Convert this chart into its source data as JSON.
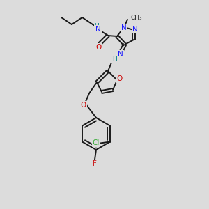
{
  "background_color": "#dcdcdc",
  "bond_color": "#1a1a1a",
  "atom_colors": {
    "N": "#1a1aff",
    "O": "#cc0000",
    "H": "#008080",
    "Cl": "#33aa33",
    "F": "#cc2222",
    "C": "#1a1a1a"
  },
  "figsize": [
    3.0,
    3.0
  ],
  "dpi": 100
}
